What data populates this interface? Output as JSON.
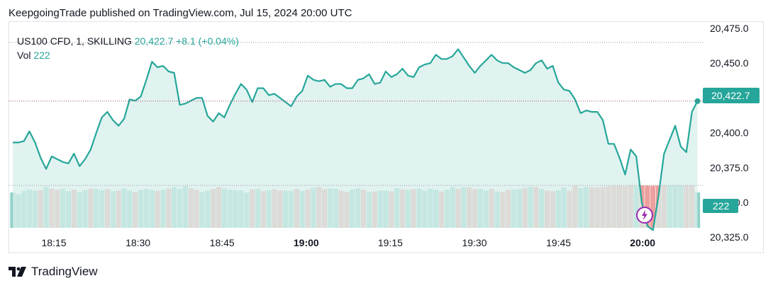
{
  "header": {
    "text": "KeepgoingTrade published on TradingView.com, Jul 15, 2024 20:00 UTC"
  },
  "legend": {
    "symbol": "US100 CFD, 1, SKILLING",
    "price": "20,422.7",
    "change": "+8.1 (+0.04%)",
    "vol_label": "Vol",
    "vol_value": "222"
  },
  "badges": {
    "price": "20,422.7",
    "volume": "222"
  },
  "footer": {
    "brand": "TradingView"
  },
  "colors": {
    "line": "#26a69a",
    "up_bar": "#8fd0c6",
    "down_bar": "#ec9f9c",
    "area": "#d7efeb",
    "accent_bolt": "#9c27b0"
  },
  "icons": {
    "bolt": "lightning-bolt-icon",
    "logo": "tradingview-logo-icon"
  },
  "chart_data": {
    "type": "line",
    "title": "US100 CFD, 1, SKILLING",
    "x_ticks": [
      "18:15",
      "18:30",
      "18:45",
      "19:00",
      "19:15",
      "19:30",
      "19:45",
      "20:00"
    ],
    "x_ticks_bold": [
      "19:00",
      "20:00"
    ],
    "y_ticks": [
      {
        "value": 20475,
        "label": "20,475.0"
      },
      {
        "value": 20450,
        "label": "20,450.0"
      },
      {
        "value": 20400,
        "label": "20,400.0"
      },
      {
        "value": 20375,
        "label": "20,375.0"
      },
      {
        "value": 20350,
        "label": "20,350.0"
      },
      {
        "value": 20325,
        "label": "20,325.0"
      }
    ],
    "ylim": [
      20320,
      20478
    ],
    "x_start_minute": 1083,
    "x_minutes_per_tick": 15,
    "series": [
      {
        "values": [
          20393,
          20393,
          20394,
          20401,
          20393,
          20382,
          20374,
          20383,
          20381,
          20379,
          20378,
          20385,
          20376,
          20381,
          20388,
          20400,
          20411,
          20415,
          20409,
          20405,
          20410,
          20424,
          20423,
          20426,
          20438,
          20451,
          20447,
          20448,
          20444,
          20443,
          20420,
          20421,
          20423,
          20425,
          20425,
          20412,
          20408,
          20414,
          20411,
          20420,
          20428,
          20435,
          20431,
          20422,
          20432,
          20432,
          20427,
          20428,
          20425,
          20422,
          20419,
          20426,
          20430,
          20441,
          20438,
          20437,
          20438,
          20433,
          20435,
          20435,
          20432,
          20432,
          20438,
          20439,
          20442,
          20435,
          20436,
          20444,
          20440,
          20442,
          20446,
          20441,
          20440,
          20447,
          20449,
          20450,
          20456,
          20453,
          20453,
          20455,
          20460,
          20454,
          20448,
          20443,
          20448,
          20452,
          20456,
          20452,
          20450,
          20450,
          20447,
          20445,
          20443,
          20445,
          20450,
          20452,
          20446,
          20448,
          20436,
          20431,
          20430,
          20424,
          20414,
          20416,
          20415,
          20415,
          20409,
          20392,
          20392,
          20382,
          20370,
          20388,
          20383,
          20350,
          20333,
          20330,
          20355,
          20385,
          20395,
          20405,
          20390,
          20386,
          20415,
          20422.7
        ]
      },
      {
        "name": "Vol",
        "values": [
          222,
          210,
          231,
          240,
          232,
          237,
          258,
          246,
          238,
          244,
          230,
          240,
          222,
          238,
          246,
          244,
          236,
          243,
          229,
          234,
          247,
          234,
          223,
          239,
          243,
          236,
          232,
          239,
          246,
          254,
          244,
          262,
          249,
          239,
          224,
          233,
          243,
          257,
          247,
          239,
          237,
          234,
          221,
          241,
          245,
          231,
          236,
          242,
          234,
          233,
          232,
          243,
          231,
          240,
          250,
          255,
          242,
          247,
          245,
          233,
          225,
          240,
          247,
          240,
          226,
          227,
          234,
          233,
          228,
          249,
          241,
          237,
          243,
          245,
          232,
          245,
          240,
          228,
          239,
          256,
          244,
          254,
          255,
          243,
          243,
          233,
          244,
          228,
          225,
          237,
          240,
          243,
          250,
          258,
          256,
          244,
          234,
          229,
          235,
          252,
          232,
          262,
          249,
          258,
          256,
          253,
          256,
          260,
          263,
          265,
          260,
          266,
          262,
          266,
          265,
          264,
          265,
          266,
          266,
          266,
          266,
          265,
          266,
          222
        ],
        "up": [
          1,
          1,
          1,
          1,
          1,
          0,
          1,
          0,
          0,
          1,
          1,
          0,
          1,
          1,
          0,
          1,
          1,
          0,
          1,
          0,
          1,
          1,
          0,
          1,
          1,
          1,
          0,
          1,
          0,
          1,
          1,
          1,
          0,
          0,
          1,
          1,
          0,
          0,
          1,
          1,
          1,
          1,
          1,
          0,
          1,
          0,
          1,
          0,
          0,
          1,
          1,
          0,
          1,
          0,
          1,
          0,
          0,
          1,
          1,
          0,
          0,
          1,
          1,
          0,
          1,
          0,
          1,
          1,
          0,
          1,
          0,
          1,
          0,
          1,
          1,
          1,
          1,
          0,
          1,
          1,
          0,
          1,
          0,
          0,
          1,
          1,
          0,
          1,
          0,
          0,
          1,
          1,
          0,
          1,
          0,
          1,
          0,
          0,
          1,
          1,
          0,
          0,
          1,
          1,
          0,
          0,
          0,
          0,
          0,
          0,
          0,
          0,
          1,
          0,
          0,
          0,
          0,
          0,
          1,
          1,
          1,
          0,
          0,
          1
        ]
      }
    ],
    "vol_axis_max": 510,
    "last_price": 20422.7,
    "grid": false,
    "legend_placement": "top-left"
  }
}
